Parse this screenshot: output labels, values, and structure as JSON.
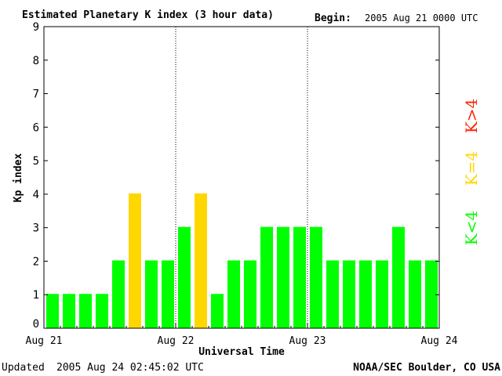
{
  "chart_data": {
    "type": "bar",
    "title": "Estimated Planetary K index (3 hour data)",
    "begin": {
      "label": "Begin:",
      "value": "2005 Aug 21 0000 UTC"
    },
    "xlabel": "Universal Time",
    "ylabel": "Kp index",
    "ylim": [
      0,
      9
    ],
    "yticks": [
      "0",
      "1",
      "2",
      "3",
      "4",
      "5",
      "6",
      "7",
      "8",
      "9"
    ],
    "xticks": [
      "Aug 21",
      "Aug 22",
      "Aug 23",
      "Aug 24"
    ],
    "day_dividers": [
      "Aug 22",
      "Aug 23"
    ],
    "grid": false,
    "values": [
      1,
      1,
      1,
      1,
      2,
      4,
      2,
      2,
      3,
      4,
      1,
      2,
      2,
      3,
      3,
      3,
      3,
      2,
      2,
      2,
      2,
      3,
      2,
      2
    ],
    "legend": {
      "position": "right",
      "entries": [
        {
          "label": "K<4",
          "color": "#00ff00"
        },
        {
          "label": "K=4",
          "color": "#ffd700"
        },
        {
          "label": "K>4",
          "color": "#ff2200"
        }
      ]
    }
  },
  "footer": {
    "updated_label": "Updated",
    "updated_value": "2005 Aug 24 02:45:02 UTC",
    "source": "NOAA/SEC Boulder, CO USA"
  }
}
